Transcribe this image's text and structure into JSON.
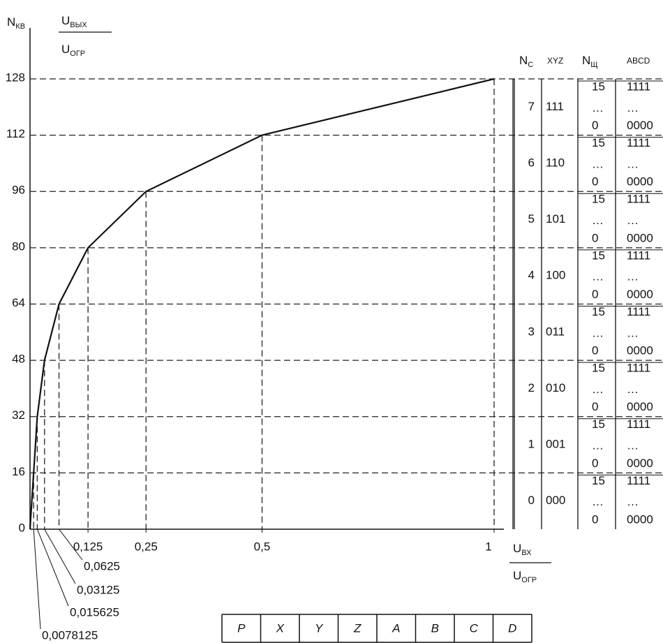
{
  "chart_data": {
    "type": "line",
    "y_label": {
      "main": "N",
      "sub": "КВ"
    },
    "y_label_fraction": {
      "num": {
        "main": "U",
        "sub": "ВЫХ"
      },
      "den": {
        "main": "U",
        "sub": "ОГР"
      }
    },
    "x_label_fraction": {
      "num": {
        "main": "U",
        "sub": "ВХ"
      },
      "den": {
        "main": "U",
        "sub": "ОГР"
      }
    },
    "x": [
      0,
      0.0078125,
      0.015625,
      0.03125,
      0.0625,
      0.125,
      0.25,
      0.5,
      1
    ],
    "series": [
      {
        "color": "#111111",
        "values": [
          0,
          16,
          32,
          48,
          64,
          80,
          96,
          112,
          128
        ]
      }
    ],
    "xlim": [
      0,
      1
    ],
    "ylim": [
      0,
      128
    ],
    "yticks": [
      0,
      16,
      32,
      48,
      64,
      80,
      96,
      112,
      128
    ],
    "xticks": [
      {
        "value": 0.125,
        "label": "0,125"
      },
      {
        "value": 0.25,
        "label": "0,25"
      },
      {
        "value": 0.5,
        "label": "0,5"
      },
      1
    ],
    "xticks_leader": [
      {
        "value": 0.0625,
        "label": "0,0625"
      },
      {
        "value": 0.03125,
        "label": "0,03125"
      },
      {
        "value": 0.015625,
        "label": "0,015625"
      },
      {
        "value": 0.0078125,
        "label": "0,0078125"
      }
    ],
    "grid": true
  },
  "segment_table": {
    "headers": [
      {
        "main": "N",
        "sub": "С"
      },
      {
        "main": "XYZ"
      },
      {
        "main": "N",
        "sub": "Щ"
      },
      {
        "main": "ABCD"
      }
    ],
    "rows": [
      {
        "n": "7",
        "xyz": "111",
        "nsh": [
          "15",
          "…",
          "0"
        ],
        "abcd": [
          "1111",
          "…",
          "0000"
        ]
      },
      {
        "n": "6",
        "xyz": "110",
        "nsh": [
          "15",
          "…",
          "0"
        ],
        "abcd": [
          "1111",
          "…",
          "0000"
        ]
      },
      {
        "n": "5",
        "xyz": "101",
        "nsh": [
          "15",
          "…",
          "0"
        ],
        "abcd": [
          "1111",
          "…",
          "0000"
        ]
      },
      {
        "n": "4",
        "xyz": "100",
        "nsh": [
          "15",
          "…",
          "0"
        ],
        "abcd": [
          "1111",
          "…",
          "0000"
        ]
      },
      {
        "n": "3",
        "xyz": "011",
        "nsh": [
          "15",
          "…",
          "0"
        ],
        "abcd": [
          "1111",
          "…",
          "0000"
        ]
      },
      {
        "n": "2",
        "xyz": "010",
        "nsh": [
          "15",
          "…",
          "0"
        ],
        "abcd": [
          "1111",
          "…",
          "0000"
        ]
      },
      {
        "n": "1",
        "xyz": "001",
        "nsh": [
          "15",
          "…",
          "0"
        ],
        "abcd": [
          "1111",
          "…",
          "0000"
        ]
      },
      {
        "n": "0",
        "xyz": "000",
        "nsh": [
          "15",
          "…",
          "0"
        ],
        "abcd": [
          "1111",
          "…",
          "0000"
        ]
      }
    ]
  },
  "code_word": [
    "P",
    "X",
    "Y",
    "Z",
    "A",
    "B",
    "C",
    "D"
  ]
}
